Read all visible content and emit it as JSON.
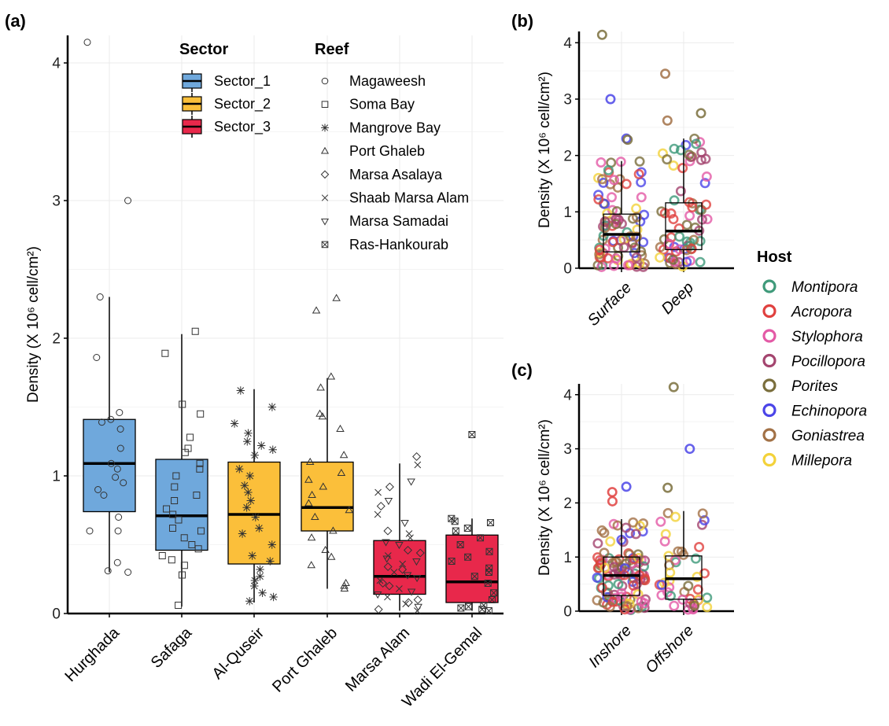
{
  "panel_labels": {
    "a": "(a)",
    "b": "(b)",
    "c": "(c)"
  },
  "colors": {
    "Sector_1": "#6fa8dc",
    "Sector_2": "#fbbf3a",
    "Sector_3": "#e8284b",
    "grid": "#ebebeb",
    "axis": "#000000"
  },
  "legend_a": {
    "sector_title": "Sector",
    "sectors": [
      "Sector_1",
      "Sector_2",
      "Sector_3"
    ],
    "reef_title": "Reef",
    "reefs": [
      {
        "name": "Magaweesh",
        "shape": "circle"
      },
      {
        "name": "Soma Bay",
        "shape": "square"
      },
      {
        "name": "Mangrove Bay",
        "shape": "asterisk"
      },
      {
        "name": "Port Ghaleb",
        "shape": "triangle"
      },
      {
        "name": "Marsa Asalaya",
        "shape": "diamond"
      },
      {
        "name": "Shaab Marsa Alam",
        "shape": "cross"
      },
      {
        "name": "Marsa Samadai",
        "shape": "triangle-down"
      },
      {
        "name": "Ras-Hankourab",
        "shape": "boxed-x"
      }
    ]
  },
  "legend_host": {
    "title": "Host",
    "hosts": [
      {
        "name": "Montipora",
        "color": "#3f9a7a"
      },
      {
        "name": "Acropora",
        "color": "#e0413f"
      },
      {
        "name": "Stylophora",
        "color": "#e35aa6"
      },
      {
        "name": "Pocillopora",
        "color": "#a4456f"
      },
      {
        "name": "Porites",
        "color": "#7a6e3c"
      },
      {
        "name": "Echinopora",
        "color": "#4b45e8"
      },
      {
        "name": "Goniastrea",
        "color": "#a27146"
      },
      {
        "name": "Millepora",
        "color": "#f3d23a"
      }
    ]
  },
  "chart_data": [
    {
      "id": "a",
      "type": "box",
      "ylabel": "Density  (X 10⁶ cell/cm²)",
      "ylim": [
        0,
        4.2
      ],
      "yticks": [
        0,
        1,
        2,
        3,
        4
      ],
      "categories": [
        "Hurghada",
        "Safaga",
        "Al-Quseir",
        "Port Ghaleb",
        "Marsa Alam",
        "Wadi El-Gemal"
      ],
      "sectors": [
        "Sector_1",
        "Sector_1",
        "Sector_2",
        "Sector_2",
        "Sector_3",
        "Sector_3"
      ],
      "boxes": [
        {
          "lower": 0.3,
          "q1": 0.74,
          "median": 1.09,
          "q3": 1.41,
          "upper": 2.3
        },
        {
          "lower": 0.05,
          "q1": 0.46,
          "median": 0.71,
          "q3": 1.12,
          "upper": 2.03
        },
        {
          "lower": 0.08,
          "q1": 0.36,
          "median": 0.72,
          "q3": 1.1,
          "upper": 1.63
        },
        {
          "lower": 0.18,
          "q1": 0.6,
          "median": 0.77,
          "q3": 1.1,
          "upper": 1.71
        },
        {
          "lower": 0.02,
          "q1": 0.14,
          "median": 0.27,
          "q3": 0.53,
          "upper": 1.09
        },
        {
          "lower": 0.02,
          "q1": 0.08,
          "median": 0.23,
          "q3": 0.57,
          "upper": 0.69
        }
      ],
      "points": [
        {
          "shape": "circle",
          "y": [
            4.15,
            3.0,
            2.3,
            1.86,
            1.46,
            1.41,
            1.39,
            1.34,
            1.2,
            1.09,
            1.05,
            0.99,
            0.95,
            0.9,
            0.86,
            0.7,
            0.6,
            0.6,
            0.37,
            0.31,
            0.3
          ]
        },
        {
          "shape": "square",
          "y": [
            2.05,
            1.89,
            1.52,
            1.45,
            1.28,
            1.2,
            1.17,
            1.09,
            1.05,
            1.0,
            0.92,
            0.86,
            0.82,
            0.76,
            0.72,
            0.68,
            0.62,
            0.6,
            0.55,
            0.5,
            0.47,
            0.42,
            0.39,
            0.35,
            0.28,
            0.06
          ]
        },
        {
          "shape": "asterisk",
          "y": [
            1.62,
            1.5,
            1.38,
            1.31,
            1.25,
            1.22,
            1.19,
            1.15,
            1.05,
            1.0,
            0.93,
            0.88,
            0.82,
            0.77,
            0.7,
            0.62,
            0.58,
            0.5,
            0.42,
            0.38,
            0.32,
            0.27,
            0.24,
            0.2,
            0.15,
            0.12,
            0.09
          ]
        },
        {
          "shape": "triangle",
          "y": [
            2.29,
            2.2,
            1.72,
            1.64,
            1.45,
            1.43,
            1.34,
            1.15,
            1.1,
            1.02,
            0.97,
            0.92,
            0.86,
            0.8,
            0.75,
            0.7,
            0.6,
            0.55,
            0.46,
            0.41,
            0.35,
            0.22,
            0.2,
            0.18
          ]
        },
        {
          "shape": "mixed",
          "y": [
            1.14,
            1.08,
            0.96,
            0.92,
            0.88,
            0.82,
            0.78,
            0.72,
            0.66,
            0.6,
            0.55,
            0.5,
            0.46,
            0.42,
            0.38,
            0.34,
            0.3,
            0.26,
            0.22,
            0.18,
            0.14,
            0.1,
            0.07,
            0.05,
            0.03,
            0.02,
            0.52,
            0.44,
            0.36,
            0.28,
            0.2,
            0.12,
            0.4,
            0.32,
            0.24,
            0.16,
            0.08,
            0.58
          ]
        },
        {
          "shape": "boxed-x",
          "y": [
            1.3,
            0.69,
            0.67,
            0.66,
            0.6,
            0.55,
            0.45,
            0.38,
            0.3,
            0.22,
            0.15,
            0.1,
            0.06,
            0.05,
            0.04,
            0.03,
            0.02,
            0.62,
            0.5,
            0.41,
            0.33,
            0.27
          ]
        }
      ]
    },
    {
      "id": "b",
      "type": "box",
      "ylabel": "Density  (X 10⁶ cell/cm²)",
      "ylim": [
        0,
        4.2
      ],
      "yticks": [
        0,
        1,
        2,
        3,
        4
      ],
      "categories": [
        "Surface",
        "Deep"
      ],
      "boxes": [
        {
          "lower": 0.02,
          "q1": 0.29,
          "median": 0.6,
          "q3": 0.96,
          "upper": 1.9
        },
        {
          "lower": 0.02,
          "q1": 0.33,
          "median": 0.66,
          "q3": 1.16,
          "upper": 2.3
        }
      ],
      "outliers": [
        {
          "group": "Surface",
          "host": "Porites",
          "y": 4.14
        },
        {
          "group": "Surface",
          "host": "Echinopora",
          "y": 3.0
        },
        {
          "group": "Surface",
          "host": "Echinopora",
          "y": 2.3
        },
        {
          "group": "Surface",
          "host": "Porites",
          "y": 2.28
        },
        {
          "group": "Deep",
          "host": "Goniastrea",
          "y": 3.45
        },
        {
          "group": "Deep",
          "host": "Porites",
          "y": 2.75
        },
        {
          "group": "Deep",
          "host": "Goniastrea",
          "y": 2.62
        }
      ]
    },
    {
      "id": "c",
      "type": "box",
      "ylabel": "Density  (X 10⁶ cell/cm²)",
      "ylim": [
        0,
        4.2
      ],
      "yticks": [
        0,
        1,
        2,
        3,
        4
      ],
      "categories": [
        "Inshore",
        "Offshore"
      ],
      "boxes": [
        {
          "lower": 0.02,
          "q1": 0.29,
          "median": 0.66,
          "q3": 1.0,
          "upper": 1.7
        },
        {
          "lower": 0.02,
          "q1": 0.22,
          "median": 0.6,
          "q3": 1.02,
          "upper": 1.85
        }
      ],
      "outliers": [
        {
          "group": "Inshore",
          "host": "Echinopora",
          "y": 2.3
        },
        {
          "group": "Inshore",
          "host": "Acropora",
          "y": 2.2
        },
        {
          "group": "Inshore",
          "host": "Acropora",
          "y": 2.03
        },
        {
          "group": "Offshore",
          "host": "Porites",
          "y": 4.14
        },
        {
          "group": "Offshore",
          "host": "Echinopora",
          "y": 3.0
        },
        {
          "group": "Offshore",
          "host": "Porites",
          "y": 2.28
        }
      ]
    }
  ]
}
